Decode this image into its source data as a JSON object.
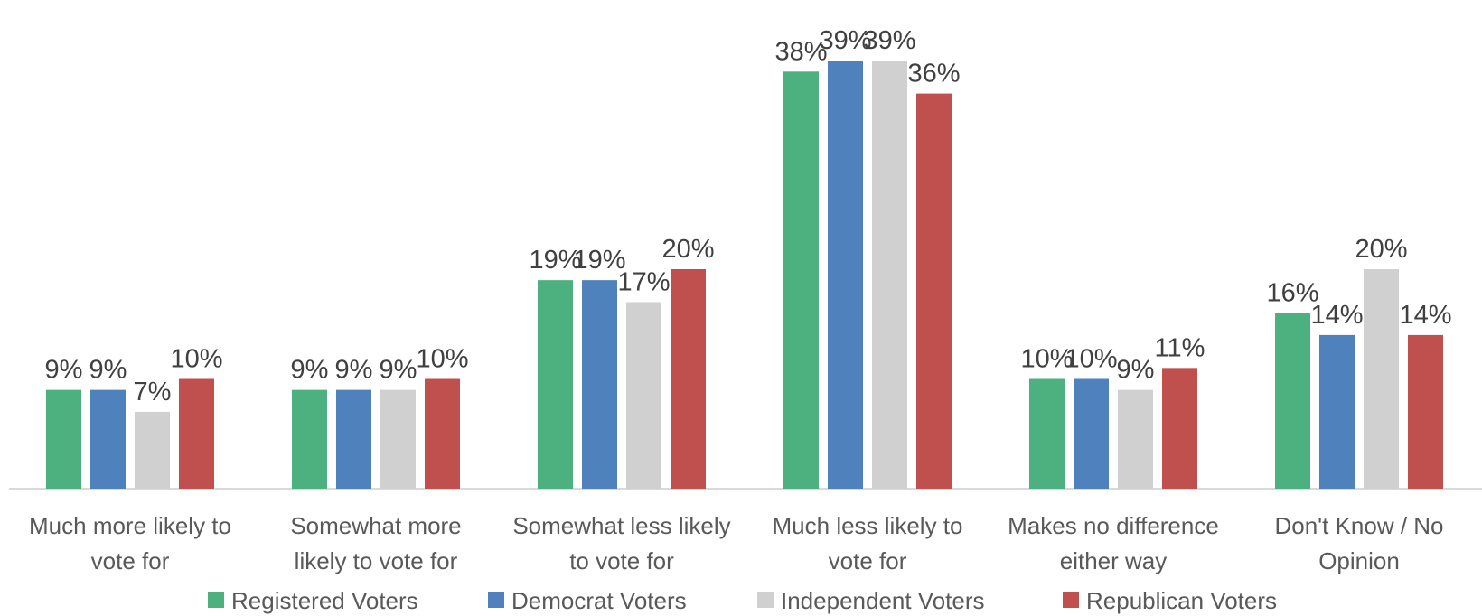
{
  "chart_data": {
    "type": "bar",
    "categories": [
      [
        "Much more likely to",
        "vote for"
      ],
      [
        "Somewhat more",
        "likely to vote for"
      ],
      [
        "Somewhat less likely",
        "to vote for"
      ],
      [
        "Much less likely to",
        "vote for"
      ],
      [
        "Makes no difference",
        "either way"
      ],
      [
        "Don't Know / No",
        "Opinion"
      ]
    ],
    "series": [
      {
        "name": "Registered Voters",
        "color": "#4db17f",
        "values": [
          9,
          9,
          19,
          38,
          10,
          16
        ]
      },
      {
        "name": "Democrat Voters",
        "color": "#4f81bd",
        "values": [
          9,
          9,
          19,
          39,
          10,
          14
        ]
      },
      {
        "name": "Independent Voters",
        "color": "#d0d0d0",
        "values": [
          7,
          9,
          17,
          39,
          9,
          20
        ]
      },
      {
        "name": "Republican Voters",
        "color": "#c0504d",
        "values": [
          10,
          10,
          20,
          36,
          11,
          14
        ]
      }
    ],
    "value_suffix": "%",
    "ylim": [
      0,
      40
    ],
    "grid": false,
    "legend_position": "bottom"
  }
}
